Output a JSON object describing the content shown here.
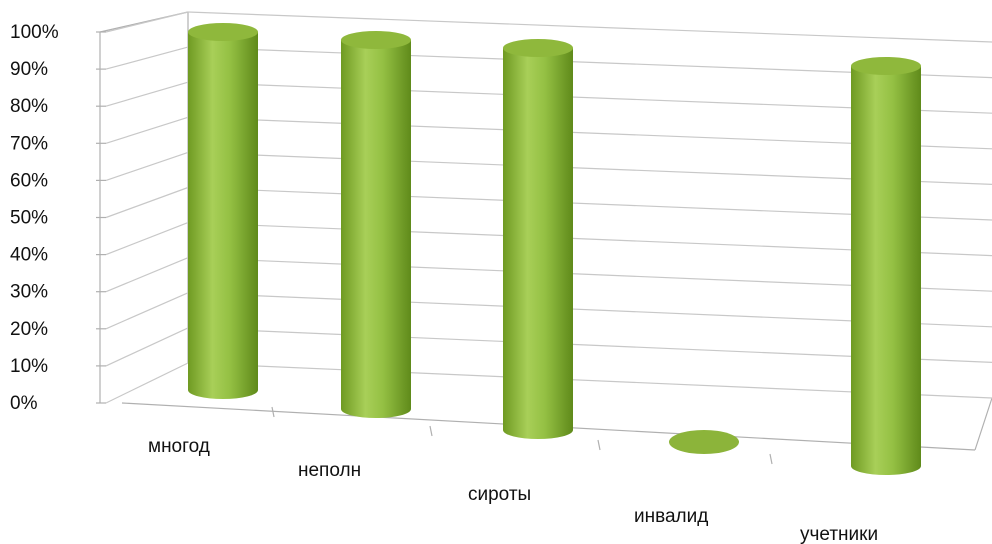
{
  "chart_data": {
    "type": "bar",
    "style": "3d-cylinder",
    "categories": [
      "многод",
      "неполн",
      "сироты",
      "инвалид",
      "учетники"
    ],
    "values": [
      100,
      100,
      100,
      0,
      100
    ],
    "ylim": [
      0,
      100
    ],
    "y_ticks": [
      "0%",
      "10%",
      "20%",
      "30%",
      "40%",
      "50%",
      "60%",
      "70%",
      "80%",
      "90%",
      "100%"
    ],
    "grid": true,
    "legend": "none",
    "bar_color": "#8cb43a"
  }
}
